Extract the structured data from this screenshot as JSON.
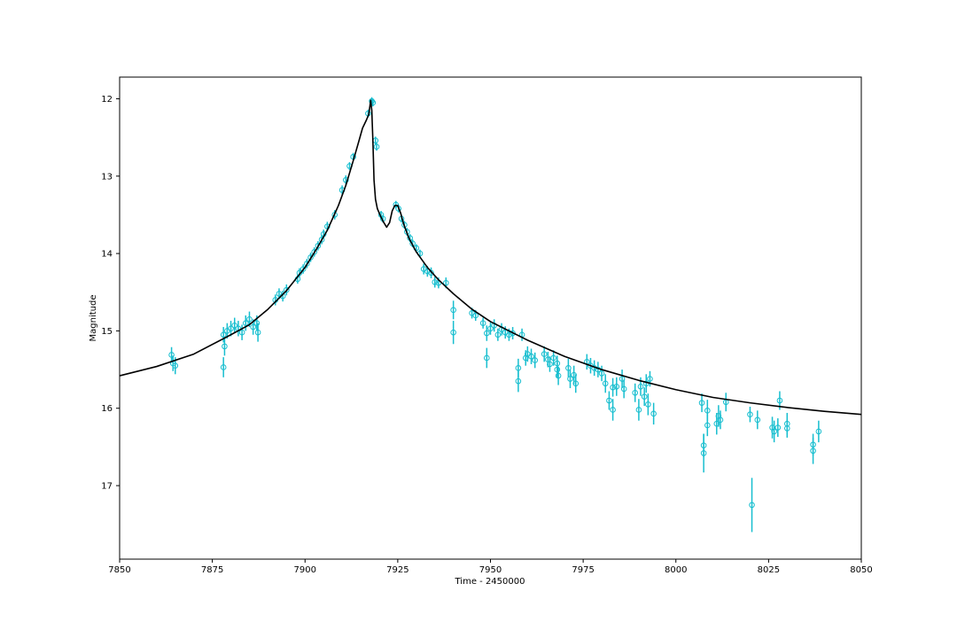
{
  "chart_data": {
    "type": "scatter",
    "title": "",
    "xlabel": "Time - 2450000",
    "ylabel": "Magnitude",
    "xlim": [
      7850,
      8050
    ],
    "ylim": [
      17.95,
      11.72
    ],
    "y_inverted": true,
    "grid": false,
    "xticks": [
      "7850",
      "7875",
      "7900",
      "7925",
      "7950",
      "7975",
      "8000",
      "8025",
      "8050"
    ],
    "yticks": [
      "12",
      "13",
      "14",
      "15",
      "16",
      "17"
    ],
    "colors": {
      "model": "#000000",
      "data": "#17becf"
    },
    "series": [
      {
        "kind": "model_line",
        "x": [
          7850,
          7860,
          7870,
          7880,
          7885,
          7890,
          7895,
          7900,
          7903,
          7906,
          7909,
          7911,
          7913,
          7914.5,
          7915.5,
          7916.5,
          7917.2,
          7917.7,
          7918.0,
          7918.3,
          7918.6,
          7919.0,
          7919.5,
          7920.2,
          7921.0,
          7922.0,
          7922.8,
          7923.5,
          7924.2,
          7925.0,
          7925.8,
          7926.6,
          7928,
          7930,
          7933,
          7936,
          7940,
          7945,
          7950,
          7960,
          7970,
          7980,
          7990,
          8000,
          8010,
          8020,
          8030,
          8040,
          8050
        ],
        "y": [
          15.58,
          15.46,
          15.3,
          15.05,
          14.92,
          14.72,
          14.48,
          14.18,
          13.95,
          13.7,
          13.38,
          13.12,
          12.8,
          12.55,
          12.38,
          12.28,
          12.2,
          12.02,
          12.15,
          12.55,
          13.05,
          13.3,
          13.42,
          13.5,
          13.58,
          13.66,
          13.6,
          13.45,
          13.38,
          13.38,
          13.48,
          13.62,
          13.8,
          13.98,
          14.18,
          14.34,
          14.52,
          14.72,
          14.88,
          15.12,
          15.33,
          15.5,
          15.64,
          15.76,
          15.86,
          15.93,
          15.99,
          16.04,
          16.08
        ]
      },
      {
        "kind": "observations",
        "points": [
          [
            7864.0,
            15.31,
            0.1
          ],
          [
            7864.4,
            15.42,
            0.1
          ],
          [
            7865.0,
            15.45,
            0.11
          ],
          [
            7878.0,
            15.05,
            0.1
          ],
          [
            7878.3,
            15.2,
            0.12
          ],
          [
            7878.0,
            15.47,
            0.13
          ],
          [
            7879.0,
            15.0,
            0.1
          ],
          [
            7880.0,
            14.97,
            0.1
          ],
          [
            7881.0,
            14.93,
            0.1
          ],
          [
            7882.0,
            14.97,
            0.1
          ],
          [
            7883.0,
            15.02,
            0.1
          ],
          [
            7884.0,
            14.9,
            0.1
          ],
          [
            7885.0,
            14.85,
            0.1
          ],
          [
            7886.0,
            14.95,
            0.1
          ],
          [
            7887.0,
            14.9,
            0.1
          ],
          [
            7887.3,
            15.02,
            0.12
          ],
          [
            7892.0,
            14.6,
            0.07
          ],
          [
            7893.0,
            14.52,
            0.07
          ],
          [
            7894.0,
            14.55,
            0.07
          ],
          [
            7895.0,
            14.47,
            0.07
          ],
          [
            7898.0,
            14.33,
            0.06
          ],
          [
            7898.5,
            14.25,
            0.06
          ],
          [
            7899.5,
            14.2,
            0.06
          ],
          [
            7900.5,
            14.13,
            0.06
          ],
          [
            7901.5,
            14.05,
            0.06
          ],
          [
            7902.5,
            13.98,
            0.06
          ],
          [
            7903.5,
            13.9,
            0.06
          ],
          [
            7904.5,
            13.82,
            0.06
          ],
          [
            7905.0,
            13.75,
            0.06
          ],
          [
            7906.0,
            13.65,
            0.06
          ],
          [
            7908.0,
            13.5,
            0.06
          ],
          [
            7910.0,
            13.18,
            0.06
          ],
          [
            7911.0,
            13.05,
            0.06
          ],
          [
            7912.0,
            12.87,
            0.05
          ],
          [
            7913.0,
            12.75,
            0.05
          ],
          [
            7917.0,
            12.19,
            0.05
          ],
          [
            7918.0,
            12.03,
            0.05
          ],
          [
            7918.3,
            12.05,
            0.05
          ],
          [
            7919.0,
            12.54,
            0.05
          ],
          [
            7919.3,
            12.62,
            0.05
          ],
          [
            7920.5,
            13.5,
            0.05
          ],
          [
            7921.0,
            13.55,
            0.05
          ],
          [
            7924.5,
            13.37,
            0.05
          ],
          [
            7925.2,
            13.42,
            0.05
          ],
          [
            7926.0,
            13.55,
            0.05
          ],
          [
            7926.8,
            13.63,
            0.05
          ],
          [
            7927.5,
            13.72,
            0.05
          ],
          [
            7928.3,
            13.8,
            0.05
          ],
          [
            7929.0,
            13.87,
            0.05
          ],
          [
            7930.0,
            13.93,
            0.05
          ],
          [
            7931.0,
            14.0,
            0.05
          ],
          [
            7932.0,
            14.2,
            0.07
          ],
          [
            7933.0,
            14.23,
            0.07
          ],
          [
            7934.0,
            14.25,
            0.07
          ],
          [
            7935.0,
            14.37,
            0.07
          ],
          [
            7936.0,
            14.38,
            0.07
          ],
          [
            7938.0,
            14.38,
            0.07
          ],
          [
            7940.0,
            14.73,
            0.12
          ],
          [
            7940.0,
            15.02,
            0.15
          ],
          [
            7945.0,
            14.77,
            0.07
          ],
          [
            7946.0,
            14.8,
            0.07
          ],
          [
            7948.0,
            14.9,
            0.07
          ],
          [
            7949.0,
            15.03,
            0.1
          ],
          [
            7949.0,
            15.35,
            0.13
          ],
          [
            7950.0,
            14.97,
            0.08
          ],
          [
            7951.0,
            14.93,
            0.08
          ],
          [
            7952.0,
            15.05,
            0.08
          ],
          [
            7953.0,
            14.98,
            0.08
          ],
          [
            7954.0,
            15.02,
            0.08
          ],
          [
            7955.0,
            15.05,
            0.08
          ],
          [
            7956.0,
            15.03,
            0.08
          ],
          [
            7957.5,
            15.48,
            0.12
          ],
          [
            7957.5,
            15.65,
            0.14
          ],
          [
            7958.5,
            15.05,
            0.08
          ],
          [
            7959.5,
            15.35,
            0.1
          ],
          [
            7960.0,
            15.3,
            0.1
          ],
          [
            7961.0,
            15.33,
            0.1
          ],
          [
            7962.0,
            15.38,
            0.1
          ],
          [
            7964.5,
            15.3,
            0.1
          ],
          [
            7965.5,
            15.37,
            0.1
          ],
          [
            7966.0,
            15.43,
            0.1
          ],
          [
            7967.0,
            15.35,
            0.1
          ],
          [
            7968.0,
            15.42,
            0.1
          ],
          [
            7968.0,
            15.5,
            0.1
          ],
          [
            7968.3,
            15.58,
            0.12
          ],
          [
            7971.0,
            15.48,
            0.12
          ],
          [
            7971.5,
            15.62,
            0.12
          ],
          [
            7972.5,
            15.57,
            0.12
          ],
          [
            7973.0,
            15.68,
            0.12
          ],
          [
            7976.0,
            15.4,
            0.1
          ],
          [
            7977.0,
            15.45,
            0.1
          ],
          [
            7978.0,
            15.48,
            0.1
          ],
          [
            7979.0,
            15.5,
            0.1
          ],
          [
            7980.0,
            15.55,
            0.1
          ],
          [
            7981.0,
            15.68,
            0.12
          ],
          [
            7982.0,
            15.9,
            0.12
          ],
          [
            7983.0,
            16.02,
            0.14
          ],
          [
            7983.0,
            15.73,
            0.12
          ],
          [
            7984.0,
            15.72,
            0.12
          ],
          [
            7985.5,
            15.62,
            0.12
          ],
          [
            7986.0,
            15.75,
            0.12
          ],
          [
            7989.0,
            15.8,
            0.12
          ],
          [
            7990.0,
            16.02,
            0.14
          ],
          [
            7990.5,
            15.72,
            0.12
          ],
          [
            7991.5,
            15.85,
            0.12
          ],
          [
            7992.0,
            15.68,
            0.12
          ],
          [
            7992.5,
            15.95,
            0.14
          ],
          [
            7993.0,
            15.62,
            0.1
          ],
          [
            7994.0,
            16.07,
            0.14
          ],
          [
            8007.0,
            15.93,
            0.12
          ],
          [
            8007.5,
            16.48,
            0.15
          ],
          [
            8007.5,
            16.58,
            0.25
          ],
          [
            8008.5,
            16.03,
            0.14
          ],
          [
            8008.5,
            16.22,
            0.14
          ],
          [
            8011.0,
            16.2,
            0.14
          ],
          [
            8011.5,
            16.1,
            0.14
          ],
          [
            8012.0,
            16.15,
            0.12
          ],
          [
            8013.5,
            15.92,
            0.12
          ],
          [
            8020.0,
            16.08,
            0.1
          ],
          [
            8020.5,
            17.25,
            0.35
          ],
          [
            8022.0,
            16.15,
            0.12
          ],
          [
            8026.0,
            16.25,
            0.14
          ],
          [
            8026.5,
            16.3,
            0.14
          ],
          [
            8027.5,
            16.25,
            0.12
          ],
          [
            8028.0,
            15.9,
            0.12
          ],
          [
            8030.0,
            16.2,
            0.14
          ],
          [
            8030.0,
            16.26,
            0.12
          ],
          [
            8037.0,
            16.47,
            0.14
          ],
          [
            8037.0,
            16.55,
            0.17
          ],
          [
            8038.5,
            16.3,
            0.14
          ]
        ]
      }
    ]
  }
}
